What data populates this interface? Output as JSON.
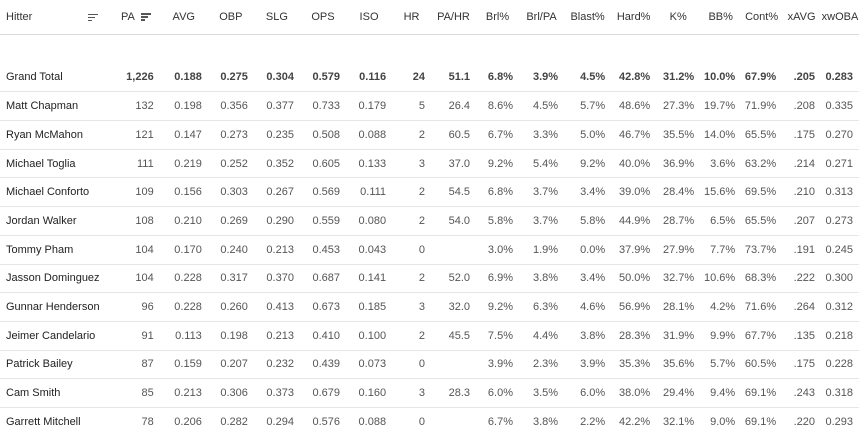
{
  "columns": [
    {
      "key": "hitter",
      "label": "Hitter"
    },
    {
      "key": "pa",
      "label": "PA"
    },
    {
      "key": "avg",
      "label": "AVG"
    },
    {
      "key": "obp",
      "label": "OBP"
    },
    {
      "key": "slg",
      "label": "SLG"
    },
    {
      "key": "ops",
      "label": "OPS"
    },
    {
      "key": "iso",
      "label": "ISO"
    },
    {
      "key": "hr",
      "label": "HR"
    },
    {
      "key": "pahr",
      "label": "PA/HR"
    },
    {
      "key": "brl",
      "label": "Brl%"
    },
    {
      "key": "brlpa",
      "label": "Brl/PA"
    },
    {
      "key": "blast",
      "label": "Blast%"
    },
    {
      "key": "hard",
      "label": "Hard%"
    },
    {
      "key": "k",
      "label": "K%"
    },
    {
      "key": "bb",
      "label": "BB%"
    },
    {
      "key": "cont",
      "label": "Cont%"
    },
    {
      "key": "xavg",
      "label": "xAVG"
    },
    {
      "key": "xwoba",
      "label": "xwOBA"
    }
  ],
  "total": [
    "Grand Total",
    "1,226",
    "0.188",
    "0.275",
    "0.304",
    "0.579",
    "0.116",
    "24",
    "51.1",
    "6.8%",
    "3.9%",
    "4.5%",
    "42.8%",
    "31.2%",
    "10.0%",
    "67.9%",
    ".205",
    "0.283"
  ],
  "rows": [
    [
      "Matt Chapman",
      "132",
      "0.198",
      "0.356",
      "0.377",
      "0.733",
      "0.179",
      "5",
      "26.4",
      "8.6%",
      "4.5%",
      "5.7%",
      "48.6%",
      "27.3%",
      "19.7%",
      "71.9%",
      ".208",
      "0.335"
    ],
    [
      "Ryan McMahon",
      "121",
      "0.147",
      "0.273",
      "0.235",
      "0.508",
      "0.088",
      "2",
      "60.5",
      "6.7%",
      "3.3%",
      "5.0%",
      "46.7%",
      "35.5%",
      "14.0%",
      "65.5%",
      ".175",
      "0.270"
    ],
    [
      "Michael Toglia",
      "111",
      "0.219",
      "0.252",
      "0.352",
      "0.605",
      "0.133",
      "3",
      "37.0",
      "9.2%",
      "5.4%",
      "9.2%",
      "40.0%",
      "36.9%",
      "3.6%",
      "63.2%",
      ".214",
      "0.271"
    ],
    [
      "Michael Conforto",
      "109",
      "0.156",
      "0.303",
      "0.267",
      "0.569",
      "0.111",
      "2",
      "54.5",
      "6.8%",
      "3.7%",
      "3.4%",
      "39.0%",
      "28.4%",
      "15.6%",
      "69.5%",
      ".210",
      "0.313"
    ],
    [
      "Jordan Walker",
      "108",
      "0.210",
      "0.269",
      "0.290",
      "0.559",
      "0.080",
      "2",
      "54.0",
      "5.8%",
      "3.7%",
      "5.8%",
      "44.9%",
      "28.7%",
      "6.5%",
      "65.5%",
      ".207",
      "0.273"
    ],
    [
      "Tommy Pham",
      "104",
      "0.170",
      "0.240",
      "0.213",
      "0.453",
      "0.043",
      "0",
      "",
      "3.0%",
      "1.9%",
      "0.0%",
      "37.9%",
      "27.9%",
      "7.7%",
      "73.7%",
      ".191",
      "0.245"
    ],
    [
      "Jasson Dominguez",
      "104",
      "0.228",
      "0.317",
      "0.370",
      "0.687",
      "0.141",
      "2",
      "52.0",
      "6.9%",
      "3.8%",
      "3.4%",
      "50.0%",
      "32.7%",
      "10.6%",
      "68.3%",
      ".222",
      "0.300"
    ],
    [
      "Gunnar Henderson",
      "96",
      "0.228",
      "0.260",
      "0.413",
      "0.673",
      "0.185",
      "3",
      "32.0",
      "9.2%",
      "6.3%",
      "4.6%",
      "56.9%",
      "28.1%",
      "4.2%",
      "71.6%",
      ".264",
      "0.312"
    ],
    [
      "Jeimer Candelario",
      "91",
      "0.113",
      "0.198",
      "0.213",
      "0.410",
      "0.100",
      "2",
      "45.5",
      "7.5%",
      "4.4%",
      "3.8%",
      "28.3%",
      "31.9%",
      "9.9%",
      "67.7%",
      ".135",
      "0.218"
    ],
    [
      "Patrick Bailey",
      "87",
      "0.159",
      "0.207",
      "0.232",
      "0.439",
      "0.073",
      "0",
      "",
      "3.9%",
      "2.3%",
      "3.9%",
      "35.3%",
      "35.6%",
      "5.7%",
      "60.5%",
      ".175",
      "0.228"
    ],
    [
      "Cam Smith",
      "85",
      "0.213",
      "0.306",
      "0.373",
      "0.679",
      "0.160",
      "3",
      "28.3",
      "6.0%",
      "3.5%",
      "6.0%",
      "38.0%",
      "29.4%",
      "9.4%",
      "69.1%",
      ".243",
      "0.318"
    ],
    [
      "Garrett Mitchell",
      "78",
      "0.206",
      "0.282",
      "0.294",
      "0.576",
      "0.088",
      "0",
      "",
      "6.7%",
      "3.8%",
      "2.2%",
      "42.2%",
      "32.1%",
      "9.0%",
      "69.1%",
      ".220",
      "0.293"
    ]
  ]
}
